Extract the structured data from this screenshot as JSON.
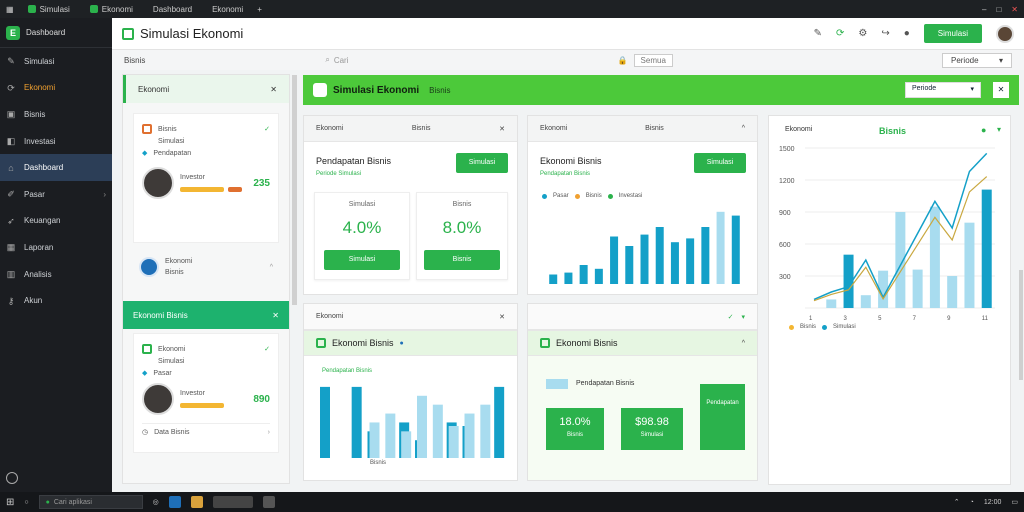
{
  "browser": {
    "tabs": [
      "Simulasi",
      "Ekonomi",
      "Dashboard",
      "Ekonomi"
    ],
    "controls": [
      "–",
      "□",
      "✕"
    ]
  },
  "sidebar": {
    "brand": "Dashboard",
    "items": [
      {
        "label": "Simulasi",
        "icon": "pen-icon",
        "active": false,
        "orange": false
      },
      {
        "label": "Ekonomi",
        "icon": "refresh-icon",
        "active": false,
        "orange": true
      },
      {
        "label": "Bisnis",
        "icon": "briefcase-icon",
        "active": false,
        "orange": false
      },
      {
        "label": "Investasi",
        "icon": "bag-icon",
        "active": false,
        "orange": false
      },
      {
        "label": "Dashboard",
        "icon": "home-icon",
        "active": true,
        "orange": false
      },
      {
        "label": "Pasar",
        "icon": "pencil-icon",
        "active": false,
        "orange": false,
        "chevron": true
      },
      {
        "label": "Keuangan",
        "icon": "rocket-icon",
        "active": false,
        "orange": false
      },
      {
        "label": "Laporan",
        "icon": "grid-icon",
        "active": false,
        "orange": false
      },
      {
        "label": "Analisis",
        "icon": "chart-icon",
        "active": false,
        "orange": false
      },
      {
        "label": "Akun",
        "icon": "key-icon",
        "active": false,
        "orange": false
      }
    ]
  },
  "header": {
    "title": "Simulasi Ekonomi",
    "action": "Simulasi",
    "close": "✕"
  },
  "subbar": {
    "label": "Bisnis",
    "search": "Cari",
    "select": "Semua",
    "select2": "Periode"
  },
  "list": {
    "header": "Ekonomi",
    "card1": {
      "title": "Bisnis",
      "sub": "Simulasi",
      "tag": "Pendapatan",
      "name": "Investor",
      "value": "235"
    },
    "card2": {
      "title": "Ekonomi",
      "sub": "Bisnis"
    },
    "green_header": "Ekonomi Bisnis",
    "card3": {
      "title": "Ekonomi",
      "sub": "Simulasi",
      "tag": "Pasar",
      "name": "Investor",
      "value": "890"
    },
    "footer": "Data Bisnis"
  },
  "banner": {
    "title": "Simulasi Ekonomi",
    "sub": "Bisnis",
    "select": "Periode",
    "x": "✕"
  },
  "panel1": {
    "head": "Ekonomi",
    "head2": "Bisnis",
    "title": "Pendapatan Bisnis",
    "sub": "Periode Simulasi",
    "btn": "Simulasi",
    "stat1": {
      "label": "Simulasi",
      "value": "4.0%",
      "btn": "Simulasi"
    },
    "stat2": {
      "label": "Bisnis",
      "value": "8.0%",
      "btn": "Bisnis"
    }
  },
  "panel2": {
    "head": "Ekonomi",
    "head2": "Bisnis",
    "title": "Ekonomi Bisnis",
    "sub": "Pendapatan Bisnis",
    "btn": "Simulasi",
    "legend": [
      "Pasar",
      "Bisnis",
      "Investasi"
    ]
  },
  "panel3": {
    "head": "Ekonomi",
    "title": "Bisnis",
    "legend": [
      "Bisnis",
      "Simulasi"
    ]
  },
  "panel4": {
    "head": "Ekonomi",
    "title": "Ekonomi Bisnis",
    "sub": "Pendapatan Bisnis",
    "xlabel": "Bisnis"
  },
  "panel5": {
    "title": "Ekonomi Bisnis",
    "sub": "Pendapatan Bisnis",
    "stat1": {
      "value": "18.0%",
      "label": "Bisnis"
    },
    "stat2": {
      "value": "$98.98",
      "label": "Simulasi"
    },
    "side_label": "Pendapatan"
  },
  "taskbar": {
    "search": "Cari aplikasi",
    "time": "12:00"
  },
  "colors": {
    "accent": "#2bb24c",
    "teal": "#14a0c8",
    "light_teal": "#a8dcef",
    "line": "#c9a840"
  },
  "chart_data": [
    {
      "type": "bar",
      "title": "Ekonomi Bisnis",
      "series": [
        {
          "values": [
            5,
            6,
            10,
            8,
            25,
            20,
            26,
            30,
            22,
            24,
            30,
            38,
            36
          ]
        }
      ],
      "ylim": [
        0,
        40
      ]
    },
    {
      "type": "bar",
      "title": "Pendapatan Bisnis",
      "series": [
        {
          "values": [
            40,
            0,
            40,
            15,
            0,
            20,
            10,
            0,
            20,
            18,
            0,
            40
          ]
        },
        {
          "values": [
            0,
            0,
            0,
            20,
            25,
            15,
            35,
            30,
            18,
            25,
            30,
            0
          ]
        }
      ],
      "ylim": [
        0,
        45
      ]
    },
    {
      "type": "bar",
      "title": "Bisnis",
      "categories": [
        "1",
        "2",
        "3",
        "4",
        "5",
        "6",
        "7",
        "8",
        "9",
        "10",
        "11"
      ],
      "yticks": [
        0,
        300,
        600,
        900,
        1200,
        1500
      ],
      "series": [
        {
          "values": [
            0,
            80,
            500,
            120,
            350,
            900,
            360,
            950,
            300,
            800,
            1110
          ]
        },
        {
          "values": [
            0,
            0,
            0,
            0,
            0,
            0,
            0,
            0,
            0,
            0,
            0
          ]
        }
      ],
      "line": [
        80,
        150,
        200,
        450,
        100,
        400,
        700,
        1000,
        750,
        1280,
        1450
      ],
      "ylim": [
        0,
        1500
      ]
    }
  ]
}
